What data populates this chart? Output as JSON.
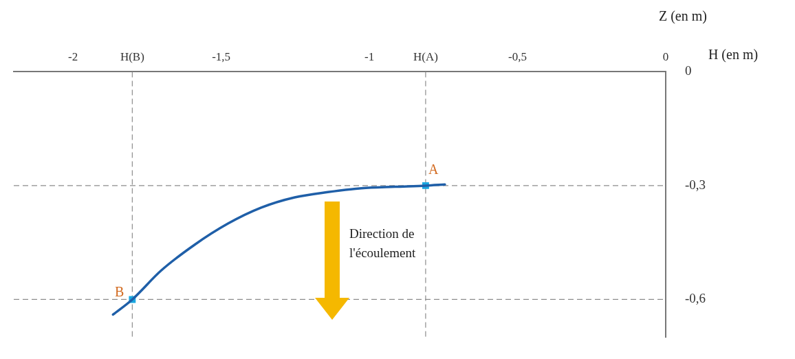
{
  "chart_data": {
    "type": "line",
    "xlabel": "H (en m)",
    "ylabel": "Z (en m)",
    "xlim": [
      -2.2,
      0
    ],
    "ylim": [
      -0.7,
      0
    ],
    "xticks": [
      -2,
      {
        "value": -1.8,
        "label": "H(B)"
      },
      {
        "value": -1.5,
        "label": "-1,5"
      },
      -1,
      {
        "value": -0.81,
        "label": "H(A)"
      },
      {
        "value": -0.5,
        "label": "-0,5"
      },
      0
    ],
    "yticks": [
      0,
      {
        "value": -0.3,
        "label": "-0,3"
      },
      {
        "value": -0.6,
        "label": "-0,6"
      }
    ],
    "grid": false,
    "legend": false,
    "line_style": "solid",
    "series": [
      {
        "color": "#1f5fa8",
        "marker": "none",
        "x": [
          -1.865,
          -1.8,
          -1.703,
          -1.59,
          -1.477,
          -1.365,
          -1.252,
          -1.14,
          -1.027,
          -0.914,
          -0.81,
          -0.745
        ],
        "values": [
          -0.64,
          -0.6,
          -0.524,
          -0.456,
          -0.4,
          -0.358,
          -0.331,
          -0.317,
          -0.307,
          -0.303,
          -0.3,
          -0.297
        ]
      },
      {
        "type": "scatter",
        "color": "#1aa7e0",
        "marker": "square",
        "x": [
          -1.8,
          -0.81
        ],
        "values": [
          -0.6,
          -0.3
        ]
      }
    ],
    "ref_lines": [
      {
        "axis": "x",
        "value": -1.8,
        "color": "#8c8c8c",
        "line_style": "dashed"
      },
      {
        "axis": "x",
        "value": -0.81,
        "color": "#8c8c8c",
        "line_style": "dashed"
      },
      {
        "axis": "y",
        "value": -0.3,
        "color": "#8c8c8c",
        "line_style": "dashed"
      },
      {
        "axis": "y",
        "value": -0.6,
        "color": "#8c8c8c",
        "line_style": "dashed"
      }
    ],
    "annotations": [
      {
        "text": "A",
        "x": -0.81,
        "y": -0.3
      },
      {
        "text": "B",
        "x": -1.8,
        "y": -0.6
      },
      "Direction de l'écoulement"
    ]
  }
}
